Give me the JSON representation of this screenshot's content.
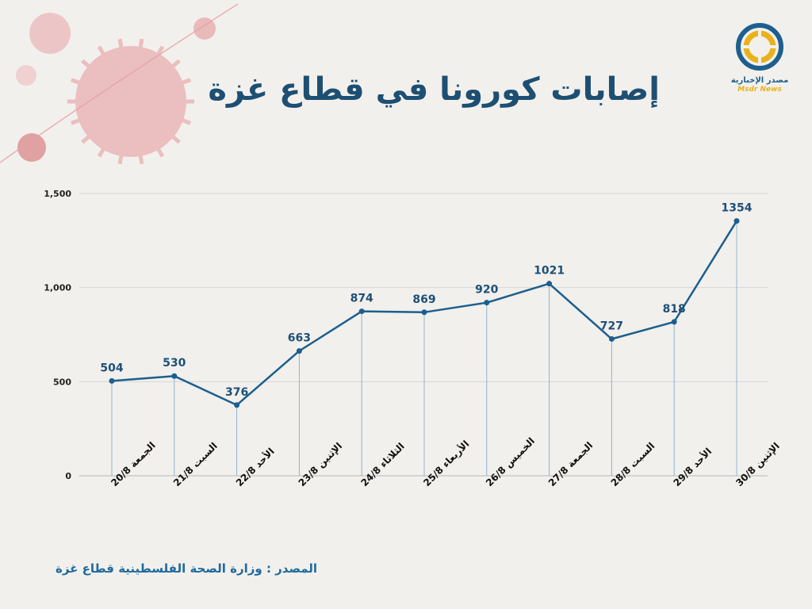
{
  "header": {
    "title": "إصابات كورونا في قطاع غزة"
  },
  "logo": {
    "name_ar": "مصدر الإخبارية",
    "name_en": "Msdr News"
  },
  "footer": {
    "source": "المصدر : وزارة الصحة الفلسطينية قطاع غزة"
  },
  "colors": {
    "line": "#1b5f8f",
    "label": "#1d5078",
    "logo_blue": "#1d5f8f",
    "logo_yellow": "#e9b21c",
    "virus": "#e7a6a8"
  },
  "chart_data": {
    "type": "line",
    "title": "إصابات كورونا في قطاع غزة",
    "categories": [
      "الجمعة 20/8",
      "السبت 21/8",
      "الأحد 22/8",
      "الإثنين 23/8",
      "الثلاثاء 24/8",
      "الأربعاء 25/8",
      "الخميس 26/8",
      "الجمعة 27/8",
      "السبت 28/8",
      "الأحد 29/8",
      "الإثنين 30/8"
    ],
    "values": [
      504,
      530,
      376,
      663,
      874,
      869,
      920,
      1021,
      727,
      818,
      1354
    ],
    "data_labels": [
      "504",
      "530",
      "376",
      "663",
      "874",
      "869",
      "920",
      "1021",
      "727",
      "818",
      "1354"
    ],
    "yticks": [
      0,
      500,
      1000,
      1500
    ],
    "ytick_labels": [
      "0",
      "500",
      "1,000",
      "1,500"
    ],
    "ylim": [
      0,
      1500
    ],
    "grid": true,
    "xlabel": "",
    "ylabel": ""
  }
}
